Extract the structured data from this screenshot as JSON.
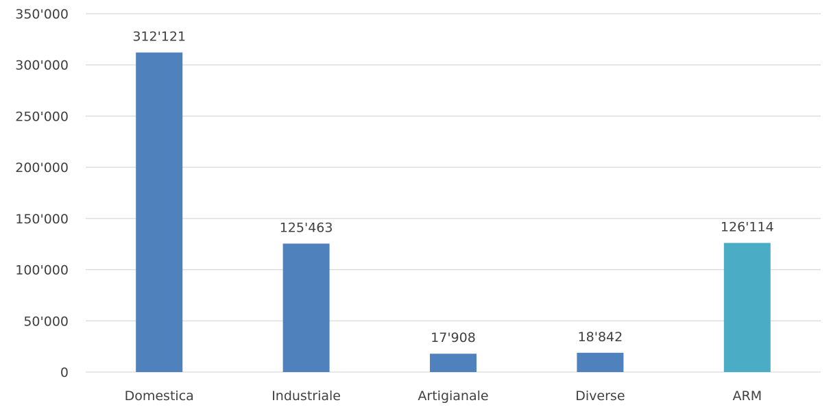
{
  "chart_data": {
    "type": "bar",
    "title": "",
    "xlabel": "",
    "ylabel": "",
    "ylim": [
      0,
      350000
    ],
    "yticks": [
      0,
      50000,
      100000,
      150000,
      200000,
      250000,
      300000,
      350000
    ],
    "ytick_labels": [
      "0",
      "50'000",
      "100'000",
      "150'000",
      "200'000",
      "250'000",
      "300'000",
      "350'000"
    ],
    "categories": [
      "Domestica",
      "Industriale",
      "Artigianale",
      "Diverse",
      "ARM"
    ],
    "values": [
      312121,
      125463,
      17908,
      18842,
      126114
    ],
    "data_labels": [
      "312'121",
      "125'463",
      "17'908",
      "18'842",
      "126'114"
    ],
    "bar_colors": [
      "#4f81bd",
      "#4f81bd",
      "#4f81bd",
      "#4f81bd",
      "#4bacc6"
    ],
    "grid": true,
    "legend": "none"
  }
}
